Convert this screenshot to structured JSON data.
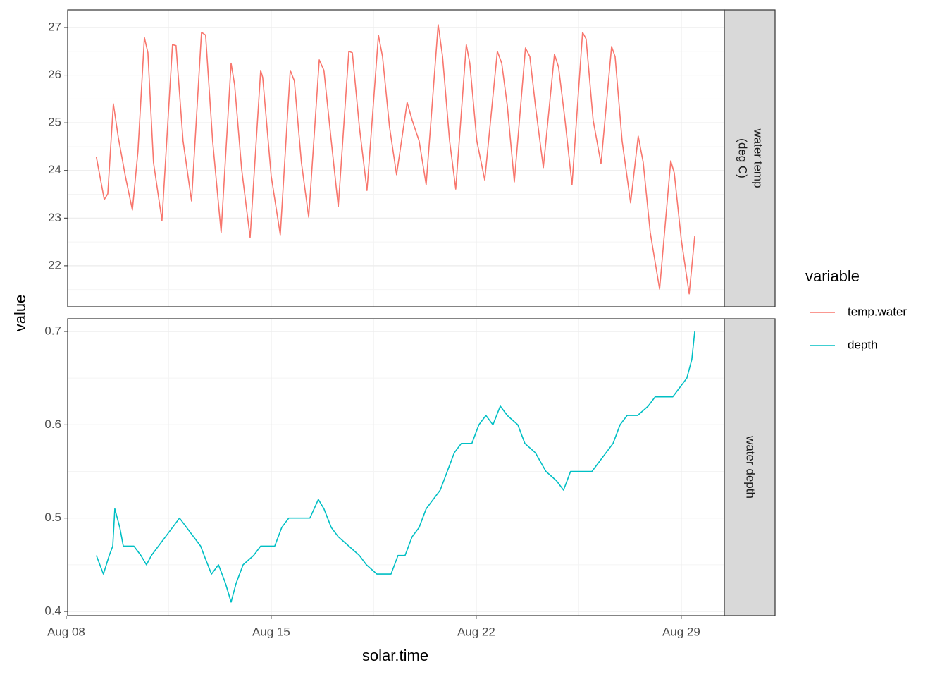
{
  "chart_data": {
    "type": "line",
    "x_label": "solar.time",
    "y_label": "value",
    "legend_title": "variable",
    "grid": true,
    "xlim": [
      8.05,
      30.47
    ],
    "xticks": [
      {
        "value": 8,
        "label": "Aug 08"
      },
      {
        "value": 15,
        "label": "Aug 15"
      },
      {
        "value": 22,
        "label": "Aug 22"
      },
      {
        "value": 29,
        "label": "Aug 29"
      }
    ],
    "panels": [
      {
        "strip": [
          "water temp",
          "(deg C)"
        ],
        "ylim": [
          21.14,
          27.37
        ],
        "yticks": [
          22,
          23,
          24,
          25,
          26,
          27
        ],
        "series": [
          {
            "name": "temp.water",
            "color": "#f8766d",
            "x": [
              9.03,
              9.3,
              9.42,
              9.61,
              9.78,
              10.02,
              10.26,
              10.45,
              10.67,
              10.79,
              10.98,
              11.27,
              11.63,
              11.75,
              11.99,
              12.28,
              12.62,
              12.76,
              13.0,
              13.29,
              13.63,
              13.75,
              13.99,
              14.28,
              14.64,
              14.71,
              15.0,
              15.31,
              15.65,
              15.79,
              16.03,
              16.28,
              16.64,
              16.8,
              17.05,
              17.29,
              17.65,
              17.77,
              18.01,
              18.27,
              18.66,
              18.8,
              19.04,
              19.28,
              19.64,
              19.81,
              20.05,
              20.29,
              20.7,
              20.85,
              21.09,
              21.3,
              21.66,
              21.78,
              22.02,
              22.29,
              22.72,
              22.87,
              23.06,
              23.3,
              23.68,
              23.83,
              24.02,
              24.29,
              24.67,
              24.81,
              25.03,
              25.27,
              25.63,
              25.75,
              25.99,
              26.26,
              26.62,
              26.74,
              26.98,
              27.27,
              27.53,
              27.7,
              27.94,
              28.26,
              28.64,
              28.76,
              29.0,
              29.27,
              29.46
            ],
            "values": [
              24.28,
              23.39,
              23.51,
              25.4,
              24.69,
              23.88,
              23.17,
              24.4,
              26.79,
              26.47,
              24.17,
              22.95,
              26.64,
              26.62,
              24.62,
              23.36,
              26.9,
              26.84,
              24.62,
              22.7,
              26.25,
              25.8,
              24.03,
              22.59,
              26.1,
              25.95,
              23.88,
              22.65,
              26.1,
              25.88,
              24.17,
              23.02,
              26.32,
              26.1,
              24.62,
              23.24,
              26.5,
              26.47,
              24.91,
              23.58,
              26.84,
              26.39,
              24.91,
              23.91,
              25.43,
              25.06,
              24.62,
              23.7,
              27.06,
              26.39,
              24.62,
              23.61,
              26.64,
              26.25,
              24.62,
              23.8,
              26.5,
              26.25,
              25.36,
              23.76,
              26.57,
              26.39,
              25.36,
              24.06,
              26.44,
              26.17,
              25.06,
              23.7,
              26.9,
              26.76,
              25.06,
              24.14,
              26.6,
              26.39,
              24.62,
              23.32,
              24.72,
              24.17,
              22.7,
              21.51,
              24.2,
              23.95,
              22.55,
              21.41,
              22.62
            ]
          }
        ]
      },
      {
        "strip": [
          "water depth"
        ],
        "ylim": [
          0.3955,
          0.7136
        ],
        "yticks": [
          0.4,
          0.5,
          0.6,
          0.7
        ],
        "series": [
          {
            "name": "depth",
            "color": "#00bfc4",
            "x": [
              9.03,
              9.27,
              9.47,
              9.59,
              9.66,
              9.83,
              9.95,
              10.31,
              10.55,
              10.74,
              10.91,
              11.15,
              11.39,
              11.63,
              11.87,
              12.11,
              12.35,
              12.59,
              12.71,
              12.96,
              13.2,
              13.44,
              13.63,
              13.8,
              14.04,
              14.4,
              14.64,
              15.12,
              15.36,
              15.6,
              15.84,
              16.32,
              16.61,
              16.8,
              17.05,
              17.29,
              17.65,
              18.01,
              18.25,
              18.61,
              19.09,
              19.33,
              19.57,
              19.81,
              20.05,
              20.29,
              20.53,
              20.77,
              21.01,
              21.25,
              21.49,
              21.85,
              22.09,
              22.33,
              22.57,
              22.82,
              23.06,
              23.42,
              23.66,
              24.02,
              24.38,
              24.74,
              24.98,
              25.22,
              25.58,
              25.95,
              26.19,
              26.43,
              26.67,
              26.91,
              27.15,
              27.51,
              27.87,
              28.11,
              28.47,
              28.71,
              28.95,
              29.19,
              29.36,
              29.46
            ],
            "values": [
              0.46,
              0.44,
              0.46,
              0.47,
              0.51,
              0.49,
              0.47,
              0.47,
              0.46,
              0.45,
              0.46,
              0.47,
              0.48,
              0.49,
              0.5,
              0.49,
              0.48,
              0.47,
              0.46,
              0.44,
              0.45,
              0.43,
              0.41,
              0.43,
              0.45,
              0.46,
              0.47,
              0.47,
              0.49,
              0.5,
              0.5,
              0.5,
              0.52,
              0.51,
              0.49,
              0.48,
              0.47,
              0.46,
              0.45,
              0.44,
              0.44,
              0.46,
              0.46,
              0.48,
              0.49,
              0.51,
              0.52,
              0.53,
              0.55,
              0.57,
              0.58,
              0.58,
              0.6,
              0.61,
              0.6,
              0.62,
              0.61,
              0.6,
              0.58,
              0.57,
              0.55,
              0.54,
              0.53,
              0.55,
              0.55,
              0.55,
              0.56,
              0.57,
              0.58,
              0.6,
              0.61,
              0.61,
              0.62,
              0.63,
              0.63,
              0.63,
              0.64,
              0.65,
              0.67,
              0.7
            ]
          }
        ]
      }
    ]
  }
}
